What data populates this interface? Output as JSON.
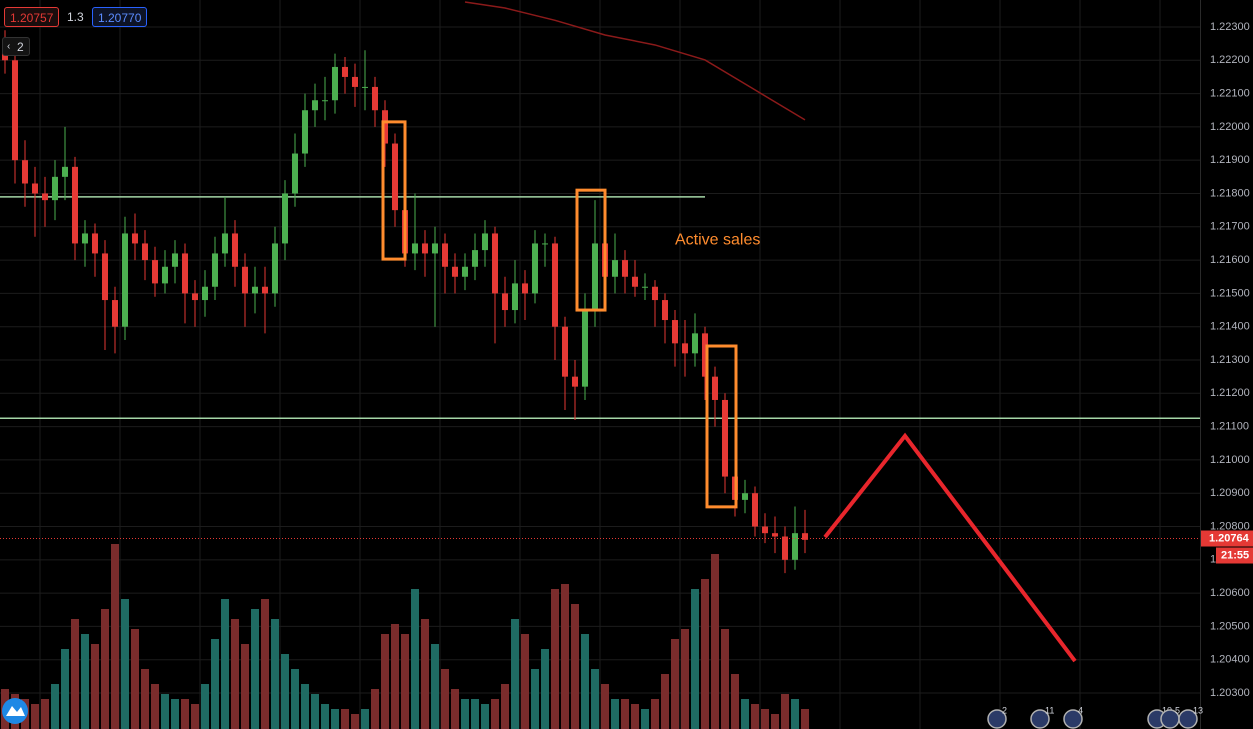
{
  "chart_data": {
    "type": "candlestick",
    "header": {
      "sell": "1.20757",
      "spread": "1.3",
      "buy": "1.20770",
      "interval": "2"
    },
    "open": [
      1.2225,
      1.222,
      1.219,
      1.2183,
      1.218,
      1.2178,
      1.2185,
      1.2188,
      1.2165,
      1.2168,
      1.2162,
      1.2148,
      1.214,
      1.2168,
      1.2165,
      1.216,
      1.2153,
      1.2158,
      1.2162,
      1.215,
      1.2148,
      1.2152,
      1.2162,
      1.2168,
      1.2158,
      1.215,
      1.2152,
      1.215,
      1.2165,
      1.218,
      1.2192,
      1.2205,
      1.2208,
      1.2208,
      1.2218,
      1.2215,
      1.2212,
      1.2212,
      1.2205,
      1.2195,
      1.2175,
      1.2162,
      1.2165,
      1.2162,
      1.2165,
      1.2158,
      1.2155,
      1.2158,
      1.2163,
      1.2168,
      1.215,
      1.2145,
      1.2153,
      1.215,
      1.2165,
      1.2165,
      1.214,
      1.2125,
      1.2122,
      1.2145,
      1.2165,
      1.2155,
      1.216,
      1.2155,
      1.2152,
      1.2152,
      1.2148,
      1.2142,
      1.2135,
      1.2132,
      1.2138,
      1.2125,
      1.2118,
      1.2095,
      1.2088,
      1.209,
      1.208,
      1.2078,
      1.2077,
      1.207,
      1.2078
    ],
    "high": [
      1.2229,
      1.2222,
      1.2196,
      1.2188,
      1.2185,
      1.219,
      1.22,
      1.2191,
      1.2172,
      1.2171,
      1.2166,
      1.2152,
      1.2173,
      1.2174,
      1.2169,
      1.2164,
      1.2163,
      1.2166,
      1.2165,
      1.2154,
      1.2157,
      1.2167,
      1.2179,
      1.2172,
      1.2162,
      1.2158,
      1.2158,
      1.217,
      1.2184,
      1.2198,
      1.221,
      1.2213,
      1.2215,
      1.2222,
      1.2221,
      1.2219,
      1.2223,
      1.2215,
      1.2208,
      1.2198,
      1.218,
      1.218,
      1.2169,
      1.217,
      1.2168,
      1.2162,
      1.2162,
      1.2168,
      1.2172,
      1.217,
      1.2155,
      1.216,
      1.2157,
      1.2169,
      1.2168,
      1.2167,
      1.2143,
      1.213,
      1.215,
      1.2178,
      1.2178,
      1.2168,
      1.2163,
      1.216,
      1.2156,
      1.2154,
      1.215,
      1.2145,
      1.2142,
      1.2144,
      1.214,
      1.2128,
      1.212,
      1.2102,
      1.2094,
      1.2092,
      1.2084,
      1.2083,
      1.208,
      1.2086,
      1.2085
    ],
    "low": [
      1.2216,
      1.2183,
      1.2176,
      1.2167,
      1.217,
      1.2172,
      1.2178,
      1.216,
      1.2158,
      1.2155,
      1.2133,
      1.2132,
      1.2136,
      1.216,
      1.2154,
      1.2149,
      1.215,
      1.2153,
      1.2141,
      1.214,
      1.2143,
      1.2148,
      1.2158,
      1.2152,
      1.214,
      1.2144,
      1.2138,
      1.2146,
      1.216,
      1.2176,
      1.2188,
      1.22,
      1.2202,
      1.2204,
      1.221,
      1.2206,
      1.2205,
      1.22,
      1.2188,
      1.217,
      1.2158,
      1.2157,
      1.2155,
      1.214,
      1.215,
      1.215,
      1.2151,
      1.2154,
      1.2158,
      1.2135,
      1.214,
      1.2141,
      1.2142,
      1.2147,
      1.2158,
      1.213,
      1.2115,
      1.2112,
      1.2118,
      1.214,
      1.215,
      1.215,
      1.215,
      1.2149,
      1.2148,
      1.214,
      1.2135,
      1.2128,
      1.2125,
      1.2128,
      1.2118,
      1.211,
      1.209,
      1.2083,
      1.2084,
      1.2077,
      1.2075,
      1.2072,
      1.2066,
      1.2067,
      1.2072
    ],
    "close": [
      1.222,
      1.219,
      1.2183,
      1.218,
      1.2178,
      1.2185,
      1.2188,
      1.2165,
      1.2168,
      1.2162,
      1.2148,
      1.214,
      1.2168,
      1.2165,
      1.216,
      1.2153,
      1.2158,
      1.2162,
      1.215,
      1.2148,
      1.2152,
      1.2162,
      1.2168,
      1.2158,
      1.215,
      1.2152,
      1.215,
      1.2165,
      1.218,
      1.2192,
      1.2205,
      1.2208,
      1.2208,
      1.2218,
      1.2215,
      1.2212,
      1.2212,
      1.2205,
      1.2195,
      1.2175,
      1.2162,
      1.2165,
      1.2162,
      1.2165,
      1.2158,
      1.2155,
      1.2158,
      1.2163,
      1.2168,
      1.215,
      1.2145,
      1.2153,
      1.215,
      1.2165,
      1.2165,
      1.214,
      1.2125,
      1.2122,
      1.2145,
      1.2165,
      1.2155,
      1.216,
      1.2155,
      1.2152,
      1.2152,
      1.2148,
      1.2142,
      1.2135,
      1.2132,
      1.2138,
      1.2125,
      1.2118,
      1.2095,
      1.2088,
      1.209,
      1.208,
      1.2078,
      1.2077,
      1.207,
      1.2078,
      1.2076
    ],
    "volume": [
      40,
      35,
      30,
      25,
      30,
      45,
      80,
      110,
      95,
      85,
      120,
      185,
      130,
      100,
      60,
      45,
      35,
      30,
      30,
      25,
      45,
      90,
      130,
      110,
      85,
      120,
      130,
      110,
      75,
      60,
      45,
      35,
      25,
      20,
      20,
      15,
      20,
      40,
      95,
      105,
      95,
      140,
      110,
      85,
      60,
      40,
      30,
      30,
      25,
      30,
      45,
      110,
      95,
      60,
      80,
      140,
      145,
      125,
      95,
      60,
      45,
      30,
      30,
      25,
      20,
      30,
      55,
      90,
      100,
      140,
      150,
      175,
      100,
      55,
      30,
      25,
      20,
      15,
      35,
      30,
      20
    ],
    "up_color": "#4caf50",
    "down_color": "#e53935",
    "volume_up_color": "#1f6b63",
    "volume_down_color": "#7a2c2c",
    "ylim": [
      1.20192,
      1.22381
    ],
    "yticks": [
      {
        "value": 1.223,
        "label": "1.22300"
      },
      {
        "value": 1.222,
        "label": "1.22200"
      },
      {
        "value": 1.221,
        "label": "1.22100"
      },
      {
        "value": 1.22,
        "label": "1.22000"
      },
      {
        "value": 1.219,
        "label": "1.21900"
      },
      {
        "value": 1.218,
        "label": "1.21800"
      },
      {
        "value": 1.217,
        "label": "1.21700"
      },
      {
        "value": 1.216,
        "label": "1.21600"
      },
      {
        "value": 1.215,
        "label": "1.21500"
      },
      {
        "value": 1.214,
        "label": "1.21400"
      },
      {
        "value": 1.213,
        "label": "1.21300"
      },
      {
        "value": 1.212,
        "label": "1.21200"
      },
      {
        "value": 1.211,
        "label": "1.21100"
      },
      {
        "value": 1.21,
        "label": "1.21000"
      },
      {
        "value": 1.209,
        "label": "1.20900"
      },
      {
        "value": 1.208,
        "label": "1.20800"
      },
      {
        "value": 1.207,
        "label": "1.20700"
      },
      {
        "value": 1.206,
        "label": "1.20600"
      },
      {
        "value": 1.205,
        "label": "1.20500"
      },
      {
        "value": 1.204,
        "label": "1.20400"
      },
      {
        "value": 1.203,
        "label": "1.20300"
      }
    ],
    "grid": true,
    "ma": {
      "color": "#8b1a1a",
      "x": [
        46,
        50,
        55,
        60,
        65,
        70,
        75,
        80
      ],
      "values": [
        1.22375,
        1.22357,
        1.2232,
        1.22276,
        1.22246,
        1.22201,
        1.22111,
        1.22021
      ]
    },
    "levels": [
      {
        "price": 1.2179,
        "until_bar": 70
      },
      {
        "price": 1.21125
      }
    ],
    "level_color": "#a5d6a7",
    "boxes": [
      {
        "bars": [
          37.8,
          40
        ],
        "prices": [
          1.22015,
          1.21603
        ]
      },
      {
        "bars": [
          57.2,
          60
        ],
        "prices": [
          1.2181,
          1.2145
        ]
      },
      {
        "bars": [
          70.2,
          73.1
        ],
        "prices": [
          1.21342,
          1.20859
        ]
      }
    ],
    "box_color": "#ff8c2e",
    "annotation": {
      "text": "Active sales",
      "bar": 67,
      "price": 1.2166
    },
    "projection": {
      "color": "#e8262c",
      "bars": [
        82,
        90,
        107
      ],
      "prices": [
        1.20768,
        1.21072,
        1.20396
      ]
    },
    "price": 1.20764,
    "countdown": "21:55",
    "events": [
      "2",
      "11",
      "4",
      "10",
      "5",
      "13"
    ]
  }
}
